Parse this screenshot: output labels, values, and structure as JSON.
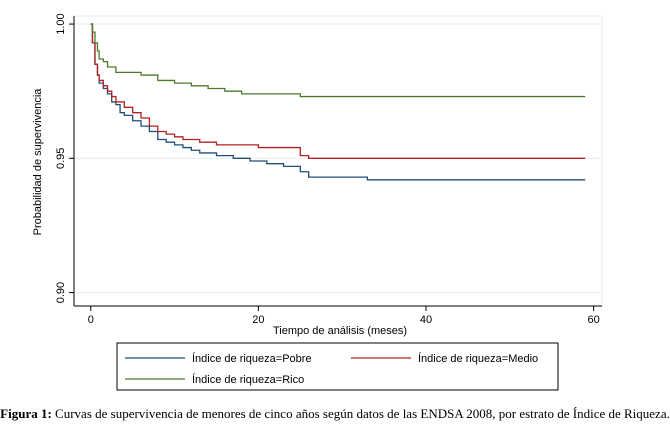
{
  "chart_data": {
    "type": "line",
    "title": "",
    "xlabel": "Tiempo de análisis (meses)",
    "ylabel": "Probabilidad de supervivencia",
    "xlim": [
      -2,
      61
    ],
    "ylim": [
      0.895,
      1.003
    ],
    "xticks": [
      0,
      20,
      40,
      60
    ],
    "xtick_labels": [
      "0",
      "20",
      "40",
      "60"
    ],
    "yticks": [
      1.0,
      0.95,
      0.9
    ],
    "ytick_labels": [
      "1.00",
      "0.95",
      "0.90"
    ],
    "legend_position": "bottom",
    "series": [
      {
        "name": "Índice de riqueza=Pobre",
        "color": "#1f4e79",
        "x": [
          0,
          0.2,
          0.5,
          0.8,
          1,
          1.5,
          2,
          2.5,
          3,
          3.5,
          4,
          5,
          6,
          7,
          8,
          9,
          10,
          11,
          12,
          13,
          14,
          15,
          16,
          17,
          18,
          19,
          20,
          21,
          22,
          23,
          24,
          25,
          26,
          28,
          30,
          32,
          33,
          35,
          36,
          37,
          40,
          45,
          50,
          55,
          59
        ],
        "y": [
          1.0,
          0.993,
          0.985,
          0.981,
          0.978,
          0.976,
          0.974,
          0.971,
          0.97,
          0.967,
          0.966,
          0.964,
          0.962,
          0.96,
          0.957,
          0.956,
          0.955,
          0.954,
          0.953,
          0.952,
          0.952,
          0.951,
          0.951,
          0.95,
          0.95,
          0.949,
          0.949,
          0.948,
          0.948,
          0.947,
          0.947,
          0.945,
          0.943,
          0.943,
          0.943,
          0.943,
          0.942,
          0.942,
          0.942,
          0.942,
          0.942,
          0.942,
          0.942,
          0.942,
          0.942
        ]
      },
      {
        "name": "Índice de riqueza=Medio",
        "color": "#b22222",
        "x": [
          0,
          0.2,
          0.5,
          0.8,
          1,
          1.5,
          2,
          2.5,
          3,
          4,
          5,
          6,
          7,
          8,
          9,
          10,
          11,
          12,
          13,
          14,
          15,
          16,
          18,
          20,
          22,
          24,
          25,
          26,
          28,
          30,
          35,
          40,
          50,
          59
        ],
        "y": [
          1.0,
          0.993,
          0.985,
          0.981,
          0.979,
          0.977,
          0.975,
          0.973,
          0.971,
          0.969,
          0.967,
          0.965,
          0.962,
          0.96,
          0.959,
          0.958,
          0.957,
          0.957,
          0.956,
          0.956,
          0.955,
          0.955,
          0.955,
          0.954,
          0.954,
          0.954,
          0.951,
          0.95,
          0.95,
          0.95,
          0.95,
          0.95,
          0.95,
          0.95
        ]
      },
      {
        "name": "Índice de riqueza=Rico",
        "color": "#4d7a2a",
        "x": [
          0,
          0.2,
          0.5,
          0.8,
          1,
          1.5,
          2,
          3,
          4,
          6,
          8,
          10,
          12,
          14,
          16,
          18,
          20,
          25,
          30,
          40,
          50,
          59
        ],
        "y": [
          1.0,
          0.997,
          0.993,
          0.99,
          0.987,
          0.986,
          0.984,
          0.982,
          0.982,
          0.981,
          0.979,
          0.978,
          0.977,
          0.976,
          0.975,
          0.974,
          0.974,
          0.973,
          0.973,
          0.973,
          0.973,
          0.973
        ]
      }
    ]
  },
  "caption": {
    "label": "Figura 1:",
    "text": "Curvas de supervivencia de menores de cinco años según datos de las ENDSA 2008, por estrato de Índice de Riqueza."
  }
}
